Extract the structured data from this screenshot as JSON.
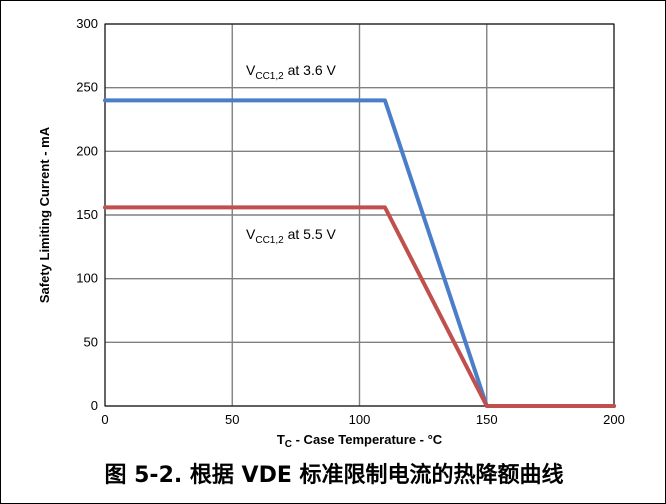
{
  "chart_data": {
    "type": "line",
    "caption": "图 5-2. 根据 VDE 标准限制电流的热降额曲线",
    "xlabel_main": "T",
    "xlabel_sub": "C",
    "xlabel_rest": " - Case Temperature - °C",
    "ylabel": "Safety Limiting Current - mA",
    "xlim": [
      0,
      200
    ],
    "ylim": [
      0,
      300
    ],
    "xticks": [
      0,
      50,
      100,
      150,
      200
    ],
    "yticks": [
      0,
      50,
      100,
      150,
      200,
      250,
      300
    ],
    "grid": true,
    "series": [
      {
        "label_main": "V",
        "label_sub": "CC1,2",
        "label_rest": " at 3.6 V",
        "color": "#4a7ec8",
        "x": [
          0,
          110,
          150,
          200
        ],
        "y": [
          240,
          240,
          0,
          0
        ]
      },
      {
        "label_main": "V",
        "label_sub": "CC1,2",
        "label_rest": " at 5.5 V",
        "color": "#c0504d",
        "x": [
          0,
          110,
          150,
          200
        ],
        "y": [
          156,
          156,
          0,
          0
        ]
      }
    ]
  }
}
